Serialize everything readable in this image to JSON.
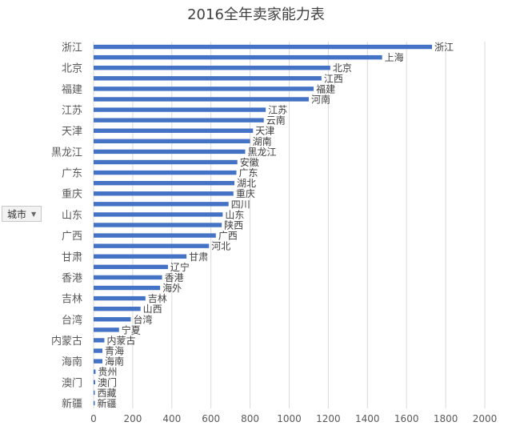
{
  "chart_data": {
    "type": "bar",
    "orientation": "horizontal",
    "title": "2016全年卖家能力表",
    "filter_label": "城市",
    "categories": [
      "浙江",
      "上海",
      "北京",
      "江西",
      "福建",
      "河南",
      "江苏",
      "云南",
      "天津",
      "湖南",
      "黑龙江",
      "安徽",
      "广东",
      "湖北",
      "重庆",
      "四川",
      "山东",
      "陕西",
      "广西",
      "河北",
      "甘肃",
      "辽宁",
      "香港",
      "海外",
      "吉林",
      "山西",
      "台湾",
      "宁夏",
      "内蒙古",
      "青海",
      "海南",
      "贵州",
      "澳门",
      "西藏",
      "新疆"
    ],
    "category_axis_labels": [
      "浙江",
      "北京",
      "福建",
      "江苏",
      "天津",
      "黑龙江",
      "广东",
      "重庆",
      "山东",
      "广西",
      "甘肃",
      "香港",
      "吉林",
      "台湾",
      "内蒙古",
      "海南",
      "澳门",
      "新疆"
    ],
    "values": [
      1730,
      1475,
      1210,
      1165,
      1125,
      1100,
      880,
      870,
      815,
      800,
      775,
      735,
      730,
      720,
      715,
      690,
      660,
      655,
      625,
      590,
      475,
      380,
      350,
      340,
      265,
      240,
      190,
      130,
      55,
      45,
      45,
      10,
      8,
      2,
      1
    ],
    "xlim": [
      0,
      2000
    ],
    "xticks": [
      0,
      200,
      400,
      600,
      800,
      1000,
      1200,
      1400,
      1600,
      1800,
      2000
    ],
    "grid": true,
    "data_labels": true,
    "colors": {
      "bar": "#4472C4",
      "grid": "#d9d9d9"
    }
  }
}
